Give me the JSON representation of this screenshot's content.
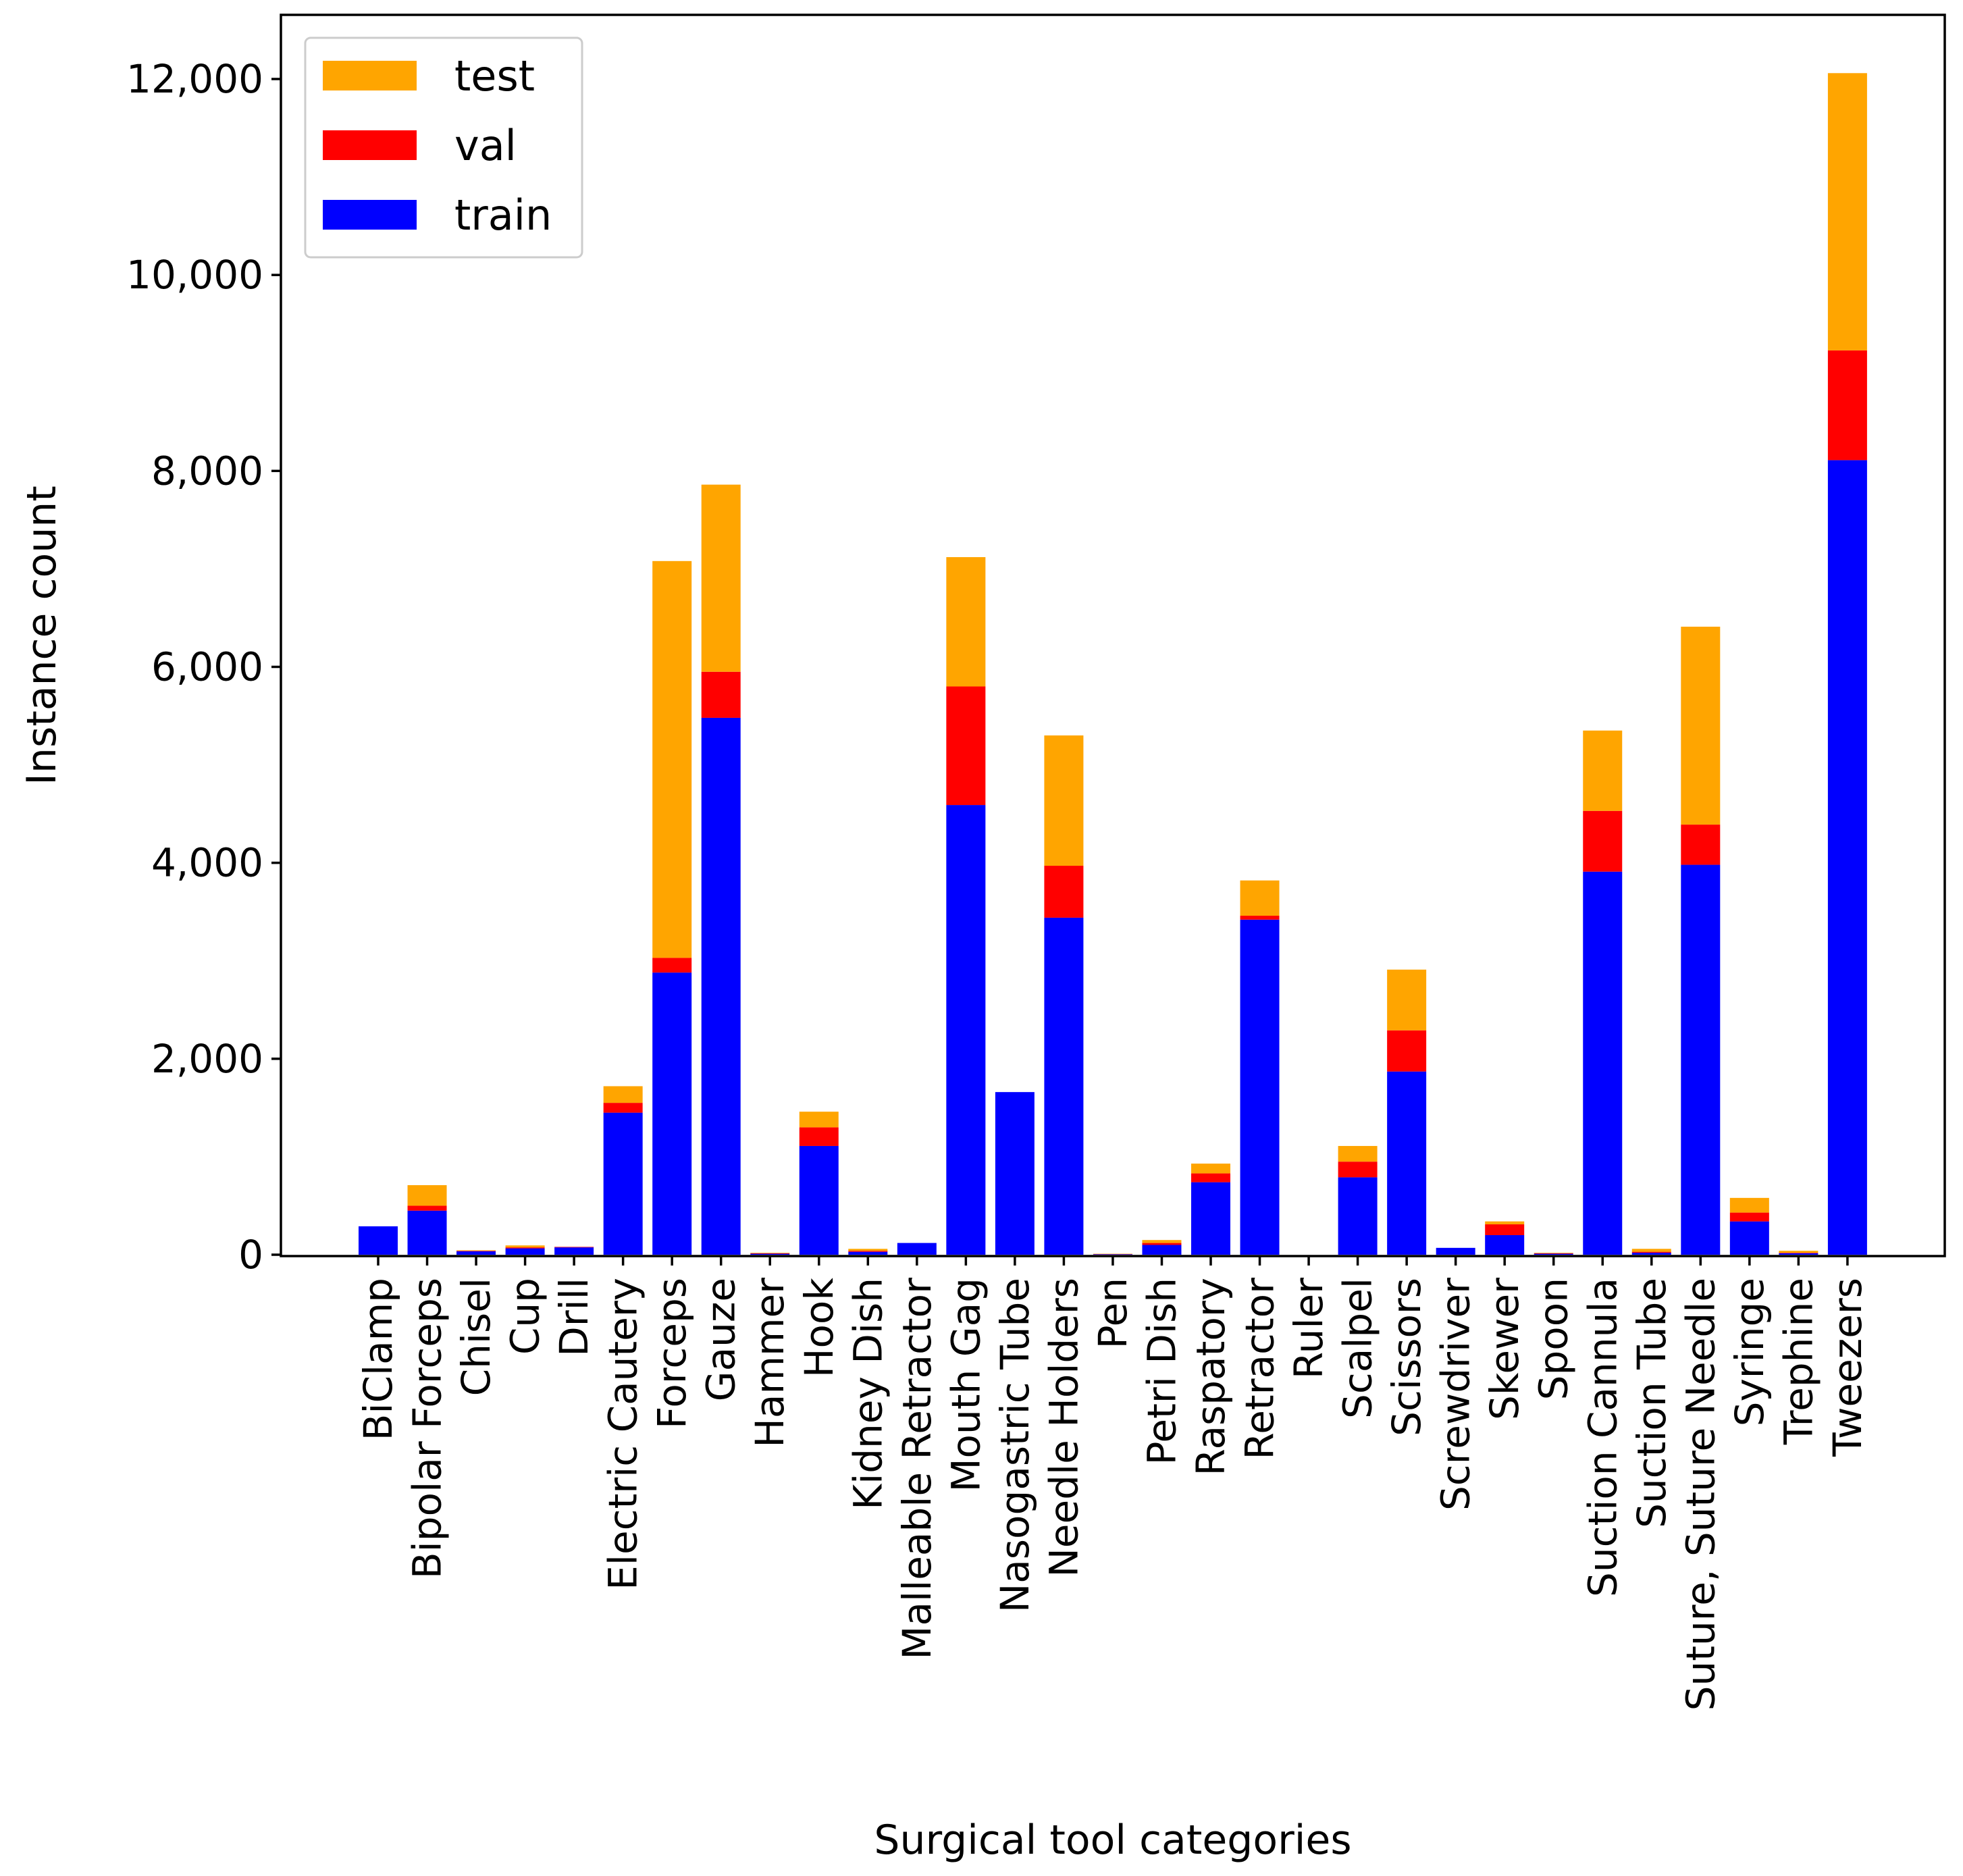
{
  "chart_data": {
    "type": "bar",
    "stacked": true,
    "title": "",
    "xlabel": "Surgical tool categories",
    "ylabel": "Instance count",
    "ylim": [
      0,
      12700
    ],
    "yticks": [
      0,
      2000,
      4000,
      6000,
      8000,
      10000,
      12000
    ],
    "ytick_labels": [
      "0",
      "2,000",
      "4,000",
      "6,000",
      "8,000",
      "10,000",
      "12,000"
    ],
    "grid": false,
    "legend_position": "top-left",
    "categories": [
      "BiClamp",
      "Bipolar Forceps",
      "Chisel",
      "Cup",
      "Drill",
      "Electric Cautery",
      "Forceps",
      "Gauze",
      "Hammer",
      "Hook",
      "Kidney Dish",
      "Malleable Retractor",
      "Mouth Gag",
      "Nasogastric Tube",
      "Needle Holders",
      "Pen",
      "Petri Dish",
      "Raspatory",
      "Retractor",
      "Ruler",
      "Scalpel",
      "Scissors",
      "Screwdriver",
      "Skewer",
      "Spoon",
      "Suction Cannula",
      "Suction Tube",
      "Suture, Suture Needle",
      "Syringe",
      "Trephine",
      "Tweezers"
    ],
    "series": [
      {
        "name": "train",
        "color": "#0000ff",
        "values": [
          290,
          450,
          35,
          65,
          75,
          1450,
          2880,
          5480,
          10,
          1110,
          30,
          120,
          4590,
          1660,
          3440,
          5,
          100,
          740,
          3420,
          0,
          790,
          1870,
          70,
          200,
          10,
          3910,
          20,
          3980,
          340,
          15,
          8110
        ]
      },
      {
        "name": "val",
        "color": "#ff0000",
        "values": [
          0,
          50,
          5,
          10,
          5,
          100,
          150,
          470,
          5,
          190,
          10,
          0,
          1210,
          0,
          530,
          2,
          20,
          90,
          40,
          0,
          160,
          420,
          0,
          110,
          5,
          620,
          10,
          410,
          90,
          5,
          1120
        ]
      },
      {
        "name": "test",
        "color": "#ffa500",
        "values": [
          0,
          210,
          5,
          20,
          0,
          170,
          4050,
          1910,
          5,
          160,
          20,
          0,
          1320,
          0,
          1330,
          3,
          30,
          100,
          360,
          0,
          160,
          620,
          0,
          30,
          5,
          820,
          30,
          2020,
          150,
          20,
          2830
        ]
      }
    ],
    "legend_order": [
      "test",
      "val",
      "train"
    ]
  }
}
